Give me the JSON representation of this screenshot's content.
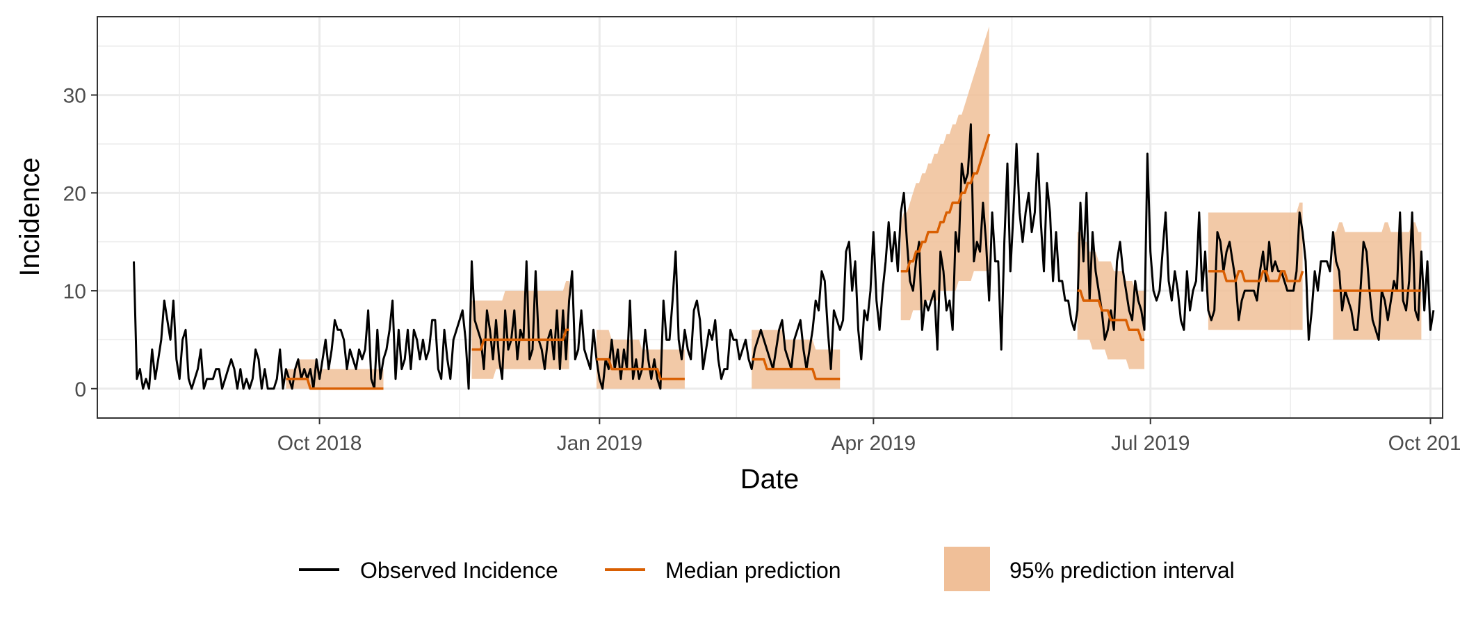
{
  "chart_data": {
    "type": "line",
    "xlabel": "Date",
    "ylabel": "Incidence",
    "xlim": [
      "2018-07-20",
      "2019-10-05"
    ],
    "ylim": [
      -3,
      38
    ],
    "x_ticks": [
      {
        "date": "2018-10-01",
        "label": "Oct 2018"
      },
      {
        "date": "2019-01-01",
        "label": "Jan 2019"
      },
      {
        "date": "2019-04-01",
        "label": "Apr 2019"
      },
      {
        "date": "2019-07-01",
        "label": "Jul 2019"
      },
      {
        "date": "2019-10-01",
        "label": "Oct 2019"
      }
    ],
    "y_ticks": [
      0,
      10,
      20,
      30
    ],
    "grid": true,
    "legend_position": "bottom",
    "colors": {
      "observed": "#000000",
      "median": "#d95f02",
      "interval": "#f0bf98"
    },
    "legend": [
      {
        "key": "observed",
        "label": "Observed Incidence"
      },
      {
        "key": "median",
        "label": "Median prediction"
      },
      {
        "key": "interval",
        "label": "95% prediction interval"
      }
    ],
    "observed": {
      "name": "Observed Incidence",
      "start_date": "2018-08-01",
      "values": [
        13,
        1,
        2,
        0,
        1,
        0,
        4,
        1,
        3,
        5,
        9,
        7,
        5,
        9,
        3,
        1,
        5,
        6,
        1,
        0,
        1,
        2,
        4,
        0,
        1,
        1,
        1,
        2,
        2,
        0,
        1,
        2,
        3,
        2,
        0,
        2,
        0,
        1,
        0,
        1,
        4,
        3,
        0,
        2,
        0,
        0,
        0,
        1,
        4,
        0,
        2,
        1,
        0,
        2,
        3,
        1,
        2,
        1,
        2,
        0,
        3,
        1,
        3,
        5,
        2,
        4,
        7,
        6,
        6,
        5,
        2,
        4,
        3,
        2,
        4,
        3,
        4,
        8,
        1,
        0,
        6,
        1,
        3,
        4,
        6,
        9,
        1,
        6,
        2,
        3,
        6,
        2,
        6,
        5,
        3,
        5,
        3,
        4,
        7,
        7,
        2,
        1,
        6,
        3,
        1,
        5,
        6,
        7,
        8,
        5,
        0,
        13,
        7,
        6,
        5,
        2,
        8,
        6,
        3,
        7,
        3,
        1,
        8,
        4,
        5,
        8,
        3,
        6,
        5,
        13,
        3,
        4,
        12,
        5,
        4,
        2,
        5,
        6,
        3,
        8,
        2,
        8,
        3,
        9,
        12,
        3,
        4,
        8,
        4,
        3,
        2,
        6,
        3,
        1,
        0,
        3,
        2,
        5,
        2,
        4,
        1,
        4,
        2,
        9,
        1,
        3,
        1,
        2,
        6,
        3,
        1,
        3,
        1,
        0,
        9,
        5,
        5,
        9,
        14,
        5,
        3,
        6,
        4,
        3,
        8,
        9,
        7,
        2,
        4,
        6,
        5,
        7,
        3,
        1,
        2,
        2,
        6,
        5,
        5,
        3,
        4,
        5,
        3,
        2,
        4,
        5,
        6,
        5,
        4,
        3,
        2,
        4,
        6,
        7,
        4,
        3,
        2,
        5,
        6,
        7,
        4,
        2,
        4,
        6,
        9,
        8,
        12,
        11,
        6,
        2,
        8,
        7,
        6,
        7,
        14,
        15,
        10,
        13,
        6,
        3,
        8,
        7,
        10,
        16,
        9,
        6,
        10,
        13,
        17,
        13,
        16,
        12,
        18,
        20,
        15,
        11,
        10,
        13,
        15,
        6,
        9,
        8,
        9,
        10,
        4,
        14,
        12,
        8,
        9,
        6,
        16,
        14,
        23,
        21,
        22,
        27,
        13,
        15,
        14,
        19,
        15,
        9,
        18,
        13,
        13,
        4,
        15,
        23,
        12,
        18,
        25,
        18,
        15,
        18,
        20,
        16,
        18,
        24,
        17,
        12,
        21,
        18,
        11,
        16,
        11,
        11,
        9,
        9,
        7,
        6,
        8,
        19,
        13,
        20,
        9,
        16,
        12,
        10,
        8,
        5,
        6,
        8,
        6,
        13,
        15,
        12,
        10,
        8,
        7,
        11,
        9,
        8,
        6,
        24,
        14,
        10,
        9,
        10,
        14,
        18,
        11,
        9,
        12,
        10,
        7,
        6,
        12,
        8,
        10,
        11,
        18,
        10,
        14,
        8,
        7,
        8,
        16,
        15,
        12,
        14,
        15,
        13,
        11,
        7,
        9,
        10,
        10,
        10,
        10,
        9,
        12,
        14,
        11,
        15,
        12,
        13,
        12,
        12,
        11,
        10,
        10,
        10,
        12,
        18,
        16,
        13,
        5,
        8,
        12,
        10,
        13,
        13,
        13,
        12,
        16,
        13,
        12,
        8,
        10,
        9,
        8,
        6,
        6,
        10,
        15,
        14,
        10,
        7,
        6,
        5,
        10,
        9,
        7,
        9,
        11,
        10,
        18,
        9,
        8,
        11,
        18,
        8,
        7,
        14,
        8,
        13,
        6,
        8
      ]
    },
    "forecasts": [
      {
        "start": "2018-09-20",
        "end": "2018-10-22",
        "median": [
          1,
          1,
          1,
          1,
          1,
          1,
          1,
          1,
          0,
          0,
          0,
          0,
          0,
          0,
          0,
          0,
          0,
          0,
          0,
          0,
          0,
          0,
          0,
          0,
          0,
          0,
          0,
          0,
          0,
          0,
          0,
          0,
          0
        ],
        "lower": [
          0,
          0,
          0,
          0,
          0,
          0,
          0,
          0,
          0,
          0,
          0,
          0,
          0,
          0,
          0,
          0,
          0,
          0,
          0,
          0,
          0,
          0,
          0,
          0,
          0,
          0,
          0,
          0,
          0,
          0,
          0,
          0,
          0
        ],
        "upper": [
          2,
          2,
          2,
          2,
          3,
          3,
          3,
          3,
          3,
          3,
          3,
          2,
          2,
          2,
          2,
          2,
          2,
          2,
          2,
          2,
          2,
          2,
          2,
          2,
          2,
          2,
          2,
          2,
          2,
          2,
          2,
          2,
          2
        ]
      },
      {
        "start": "2018-11-20",
        "end": "2018-12-22",
        "median": [
          4,
          4,
          4,
          4,
          5,
          5,
          5,
          5,
          5,
          5,
          5,
          5,
          5,
          5,
          5,
          5,
          5,
          5,
          5,
          5,
          5,
          5,
          5,
          5,
          5,
          5,
          5,
          5,
          5,
          5,
          5,
          6,
          6
        ],
        "lower": [
          1,
          1,
          1,
          1,
          1,
          1,
          1,
          1,
          2,
          2,
          2,
          2,
          2,
          2,
          2,
          2,
          2,
          2,
          2,
          2,
          2,
          2,
          2,
          2,
          2,
          2,
          2,
          2,
          2,
          2,
          2,
          2,
          2
        ],
        "upper": [
          9,
          9,
          9,
          9,
          9,
          9,
          9,
          9,
          9,
          9,
          9,
          10,
          10,
          10,
          10,
          10,
          10,
          10,
          10,
          10,
          10,
          10,
          10,
          10,
          10,
          10,
          10,
          10,
          10,
          10,
          10,
          11,
          11
        ]
      },
      {
        "start": "2018-12-31",
        "end": "2019-01-29",
        "median": [
          3,
          3,
          3,
          3,
          3,
          2,
          2,
          2,
          2,
          2,
          2,
          2,
          2,
          2,
          2,
          2,
          2,
          2,
          2,
          2,
          2,
          1,
          1,
          1,
          1,
          1,
          1,
          1,
          1,
          1
        ],
        "lower": [
          0,
          0,
          0,
          0,
          0,
          0,
          0,
          0,
          0,
          0,
          0,
          0,
          0,
          0,
          0,
          0,
          0,
          0,
          0,
          0,
          0,
          0,
          0,
          0,
          0,
          0,
          0,
          0,
          0,
          0
        ],
        "upper": [
          6,
          6,
          6,
          6,
          6,
          5,
          5,
          5,
          5,
          5,
          5,
          5,
          5,
          5,
          5,
          4,
          4,
          4,
          4,
          4,
          4,
          4,
          4,
          4,
          4,
          4,
          4,
          4,
          4,
          4
        ]
      },
      {
        "start": "2019-02-20",
        "end": "2019-03-21",
        "median": [
          3,
          3,
          3,
          3,
          3,
          2,
          2,
          2,
          2,
          2,
          2,
          2,
          2,
          2,
          2,
          2,
          2,
          2,
          2,
          2,
          2,
          1,
          1,
          1,
          1,
          1,
          1,
          1,
          1,
          1
        ],
        "lower": [
          0,
          0,
          0,
          0,
          0,
          0,
          0,
          0,
          0,
          0,
          0,
          0,
          0,
          0,
          0,
          0,
          0,
          0,
          0,
          0,
          0,
          0,
          0,
          0,
          0,
          0,
          0,
          0,
          0,
          0
        ],
        "upper": [
          6,
          6,
          6,
          6,
          6,
          6,
          6,
          6,
          6,
          6,
          6,
          5,
          5,
          5,
          5,
          5,
          5,
          5,
          5,
          5,
          5,
          4,
          4,
          4,
          4,
          4,
          4,
          4,
          4,
          4
        ]
      },
      {
        "start": "2019-04-10",
        "end": "2019-05-09",
        "median": [
          12,
          12,
          12,
          13,
          13,
          14,
          14,
          15,
          15,
          16,
          16,
          16,
          16,
          17,
          17,
          18,
          18,
          19,
          19,
          19,
          20,
          20,
          21,
          21,
          22,
          22,
          23,
          24,
          25,
          26
        ],
        "lower": [
          7,
          7,
          7,
          7,
          8,
          8,
          8,
          8,
          9,
          9,
          9,
          9,
          9,
          10,
          10,
          10,
          10,
          10,
          10,
          11,
          11,
          11,
          11,
          11,
          12,
          12,
          12,
          12,
          12,
          12
        ],
        "upper": [
          17,
          18,
          18,
          19,
          20,
          21,
          21,
          22,
          22,
          23,
          23,
          24,
          24,
          25,
          25,
          26,
          26,
          27,
          27,
          28,
          28,
          29,
          30,
          31,
          32,
          33,
          34,
          35,
          36,
          37
        ]
      },
      {
        "start": "2019-06-07",
        "end": "2019-06-29",
        "median": [
          10,
          10,
          9,
          9,
          9,
          9,
          9,
          9,
          8,
          8,
          8,
          7,
          7,
          7,
          7,
          7,
          7,
          6,
          6,
          6,
          6,
          5,
          5
        ],
        "lower": [
          5,
          5,
          5,
          5,
          5,
          4,
          4,
          4,
          4,
          4,
          3,
          3,
          3,
          3,
          3,
          3,
          3,
          2,
          2,
          2,
          2,
          2,
          2
        ],
        "upper": [
          16,
          16,
          15,
          15,
          14,
          14,
          14,
          13,
          13,
          13,
          13,
          13,
          12,
          12,
          12,
          12,
          11,
          11,
          11,
          10,
          10,
          10,
          10
        ]
      },
      {
        "start": "2019-07-20",
        "end": "2019-08-20",
        "median": [
          12,
          12,
          12,
          12,
          12,
          12,
          11,
          11,
          11,
          11,
          12,
          12,
          11,
          11,
          11,
          11,
          11,
          11,
          12,
          12,
          11,
          11,
          11,
          11,
          12,
          12,
          11,
          11,
          11,
          11,
          11,
          12
        ],
        "lower": [
          6,
          6,
          6,
          6,
          6,
          6,
          6,
          6,
          6,
          6,
          6,
          6,
          6,
          6,
          6,
          6,
          6,
          6,
          6,
          6,
          6,
          6,
          6,
          6,
          6,
          6,
          6,
          6,
          6,
          6,
          6,
          6
        ],
        "upper": [
          18,
          18,
          18,
          18,
          18,
          18,
          18,
          18,
          18,
          18,
          18,
          18,
          18,
          18,
          18,
          18,
          18,
          18,
          18,
          18,
          18,
          18,
          18,
          18,
          18,
          18,
          18,
          18,
          18,
          18,
          19,
          19
        ]
      },
      {
        "start": "2019-08-30",
        "end": "2019-09-28",
        "median": [
          10,
          10,
          10,
          10,
          10,
          10,
          10,
          10,
          10,
          10,
          10,
          10,
          10,
          10,
          10,
          10,
          10,
          10,
          10,
          10,
          10,
          10,
          10,
          10,
          10,
          10,
          10,
          10,
          10,
          10
        ],
        "lower": [
          5,
          5,
          5,
          5,
          5,
          5,
          5,
          5,
          5,
          5,
          5,
          5,
          5,
          5,
          5,
          5,
          5,
          5,
          5,
          5,
          5,
          5,
          5,
          5,
          5,
          5,
          5,
          5,
          5,
          5
        ],
        "upper": [
          16,
          16,
          17,
          17,
          16,
          16,
          16,
          16,
          16,
          16,
          16,
          16,
          16,
          16,
          16,
          16,
          16,
          17,
          17,
          16,
          16,
          16,
          16,
          16,
          16,
          16,
          17,
          17,
          16,
          16
        ]
      }
    ]
  }
}
